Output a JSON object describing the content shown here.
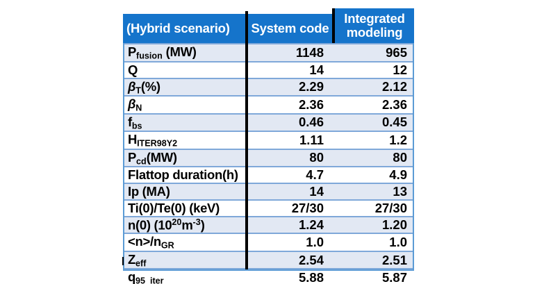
{
  "colors": {
    "header_bg": "#1574CB",
    "stripe_bg": "#E2E8F3",
    "grid_line": "#7FA8D9",
    "outer_border": "#5B9BD5",
    "divider": "#000000",
    "header_text": "#FFFFFF",
    "body_text": "#000000",
    "page_bg": "#FFFFFF"
  },
  "table": {
    "header": {
      "col1": "(Hybrid scenario)",
      "col2": "System code",
      "col3_line1": "Integrated",
      "col3_line2": "modeling"
    },
    "rows": [
      {
        "label": [
          {
            "t": "P"
          },
          {
            "t": "fusion",
            "s": "sub"
          },
          {
            "t": " (MW)"
          }
        ],
        "system_code": "1148",
        "integrated_modeling": "965"
      },
      {
        "label": [
          {
            "t": "Q"
          }
        ],
        "system_code": "14",
        "integrated_modeling": "12"
      },
      {
        "label": [
          {
            "t": "β",
            "s": "i"
          },
          {
            "t": "T",
            "s": "sub"
          },
          {
            "t": "(%)"
          }
        ],
        "system_code": "2.29",
        "integrated_modeling": "2.12"
      },
      {
        "label": [
          {
            "t": "β",
            "s": "i"
          },
          {
            "t": "N",
            "s": "sub"
          }
        ],
        "system_code": "2.36",
        "integrated_modeling": "2.36"
      },
      {
        "label": [
          {
            "t": "f"
          },
          {
            "t": "bs",
            "s": "sub"
          }
        ],
        "system_code": "0.46",
        "integrated_modeling": "0.45"
      },
      {
        "label": [
          {
            "t": "H"
          },
          {
            "t": "ITER98Y2",
            "s": "sub"
          }
        ],
        "system_code": "1.11",
        "integrated_modeling": "1.2"
      },
      {
        "label": [
          {
            "t": "P"
          },
          {
            "t": "cd",
            "s": "sub"
          },
          {
            "t": "(MW)"
          }
        ],
        "system_code": "80",
        "integrated_modeling": "80"
      },
      {
        "label": [
          {
            "t": "Flattop duration(h)"
          }
        ],
        "system_code": "4.7",
        "integrated_modeling": "4.9"
      },
      {
        "label": [
          {
            "t": "Ip (MA)"
          }
        ],
        "system_code": "14",
        "integrated_modeling": "13"
      },
      {
        "label": [
          {
            "t": "Ti(0)/Te(0) (keV)"
          }
        ],
        "system_code": "27/30",
        "integrated_modeling": "27/30"
      },
      {
        "label": [
          {
            "t": "n(0) (10"
          },
          {
            "t": "20",
            "s": "sup"
          },
          {
            "t": "m"
          },
          {
            "t": "-3",
            "s": "sup"
          },
          {
            "t": ")"
          }
        ],
        "system_code": "1.24",
        "integrated_modeling": "1.20"
      },
      {
        "label": [
          {
            "t": "<n>/n"
          },
          {
            "t": "GR",
            "s": "sub"
          }
        ],
        "system_code": "1.0",
        "integrated_modeling": "1.0"
      },
      {
        "label": [
          {
            "t": "Z"
          },
          {
            "t": "eff",
            "s": "sub"
          }
        ],
        "system_code": "2.54",
        "integrated_modeling": "2.51"
      },
      {
        "label": [
          {
            "t": "q"
          },
          {
            "t": "95_iter",
            "s": "sub"
          }
        ],
        "system_code": "5.88",
        "integrated_modeling": "5.87"
      }
    ]
  },
  "chart_data": {
    "type": "table",
    "title": "(Hybrid scenario)",
    "columns": [
      "(Hybrid scenario)",
      "System code",
      "Integrated modeling"
    ],
    "categories": [
      "Pfusion (MW)",
      "Q",
      "βT(%)",
      "βN",
      "fbs",
      "HITER98Y2",
      "Pcd(MW)",
      "Flattop duration(h)",
      "Ip (MA)",
      "Ti(0)/Te(0) (keV)",
      "n(0) (10^20 m^-3)",
      "<n>/nGR",
      "Zeff",
      "q95_iter"
    ],
    "series": [
      {
        "name": "System code",
        "values": [
          "1148",
          "14",
          "2.29",
          "2.36",
          "0.46",
          "1.11",
          "80",
          "4.7",
          "14",
          "27/30",
          "1.24",
          "1.0",
          "2.54",
          "5.88"
        ]
      },
      {
        "name": "Integrated modeling",
        "values": [
          "965",
          "12",
          "2.12",
          "2.36",
          "0.45",
          "1.2",
          "80",
          "4.9",
          "13",
          "27/30",
          "1.20",
          "1.0",
          "2.51",
          "5.87"
        ]
      }
    ],
    "layout": {
      "striped_rows": true,
      "header_position": "top",
      "value_alignment": "right"
    }
  }
}
